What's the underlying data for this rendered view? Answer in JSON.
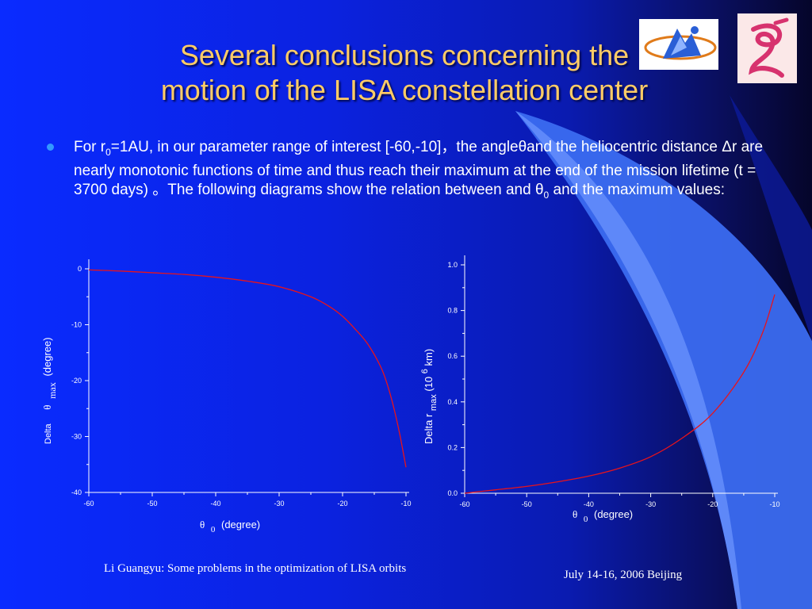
{
  "title_line1": "Several conclusions concerning the",
  "title_line2": "motion of the LISA constellation center",
  "bullet": {
    "t1": "For r",
    "s1": "0",
    "t2": "=1AU, in our parameter range of interest [-60,-10]，the angleθand the heliocentric distance Δr are nearly monotonic functions of time and thus reach their maximum at the end of the mission lifetime (t = 3700 days) 。The following diagrams show the relation between and θ",
    "s2": "0",
    "t3": " and the maximum values:"
  },
  "colors": {
    "title": "#ffcc66",
    "curve": "#e8131b",
    "bullet": "#3399ff"
  },
  "chart_data": [
    {
      "type": "line",
      "x": [
        -60,
        -55,
        -50,
        -45,
        -40,
        -35,
        -30,
        -25,
        -22,
        -20,
        -18,
        -16,
        -14,
        -13,
        -12,
        -11,
        -10
      ],
      "series": [
        {
          "values": [
            -0.2,
            -0.4,
            -0.7,
            -1.0,
            -1.5,
            -2.2,
            -3.2,
            -5.0,
            -6.8,
            -8.5,
            -10.8,
            -13.5,
            -17.5,
            -20.5,
            -24.5,
            -29.5,
            -35.5
          ]
        }
      ],
      "xlim": [
        -60,
        -10
      ],
      "ylim": [
        -40,
        0
      ],
      "xticks": [
        "-60",
        "-50",
        "-40",
        "-30",
        "-20",
        "-10"
      ],
      "yticks": [
        "0",
        "-10",
        "-20",
        "-30",
        "-40"
      ],
      "ylabel": {
        "pre": "Delta",
        "theta": "θ",
        "sub": "max",
        "post": "(degree)"
      },
      "xlabel": {
        "theta": "θ",
        "sub": "0",
        "post": "(degree)"
      }
    },
    {
      "type": "line",
      "x": [
        -60,
        -55,
        -50,
        -45,
        -40,
        -35,
        -30,
        -25,
        -20,
        -15,
        -12,
        -10
      ],
      "series": [
        {
          "values": [
            0.0,
            0.015,
            0.03,
            0.05,
            0.075,
            0.11,
            0.16,
            0.24,
            0.35,
            0.53,
            0.7,
            0.87
          ]
        }
      ],
      "xlim": [
        -60,
        -10
      ],
      "ylim": [
        0,
        1.0
      ],
      "xticks": [
        "-60",
        "-50",
        "-40",
        "-30",
        "-20",
        "-10"
      ],
      "yticks": [
        "0.0",
        "0.2",
        "0.4",
        "0.6",
        "0.8",
        "1.0"
      ],
      "ylabel": {
        "pre": "Delta r",
        "sub": "max",
        "mid": "(10",
        "sup": "6",
        "post": "km)"
      },
      "xlabel": {
        "theta": "θ",
        "sub": "0",
        "post": "(degree)"
      }
    }
  ],
  "footer_left": "Li Guangyu: Some problems in the optimization of LISA orbits",
  "footer_right": "July 14-16, 2006   Beijing"
}
